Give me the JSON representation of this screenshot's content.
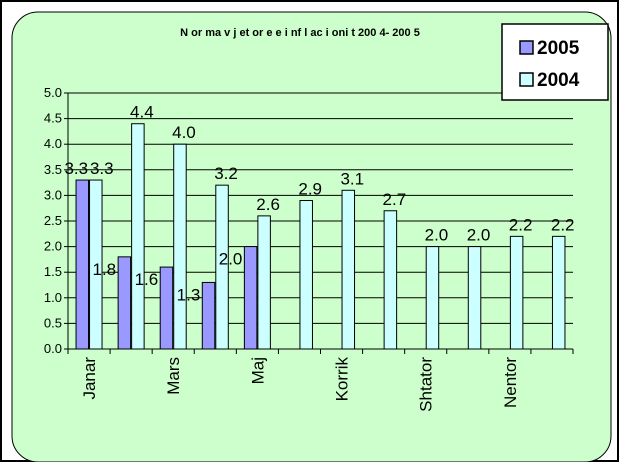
{
  "chart_data": {
    "type": "bar",
    "title": "N or ma v j et or e e i nf l ac i oni t 200 4- 200 5",
    "xlabel": "",
    "ylabel": "",
    "ylim": [
      0,
      5
    ],
    "yticks": [
      "0.0",
      "0.5",
      "1.0",
      "1.5",
      "2.0",
      "2.5",
      "3.0",
      "3.5",
      "4.0",
      "4.5",
      "5.0"
    ],
    "categories": [
      "Janar",
      "",
      "Mars",
      "",
      "Maj",
      "",
      "Korrik",
      "",
      "Shtator",
      "",
      "Nentor",
      ""
    ],
    "series": [
      {
        "name": "2005",
        "color": "#9999ff",
        "values": [
          3.3,
          1.8,
          1.6,
          1.3,
          2.0,
          null,
          null,
          null,
          null,
          null,
          null,
          null
        ],
        "labels": [
          "3.3",
          "1.8",
          "1.6",
          "1.3",
          "2.0"
        ]
      },
      {
        "name": "2004",
        "color": "#ccffff",
        "values": [
          3.3,
          4.4,
          4.0,
          3.2,
          2.6,
          2.9,
          3.1,
          2.7,
          2.0,
          2.0,
          2.2,
          2.2
        ],
        "labels": [
          "3.3",
          "4.4",
          "4.0",
          "3.2",
          "2.6",
          "2.9",
          "3.1",
          "2.7",
          "2.0",
          "2.0",
          "2.2",
          "2.2"
        ]
      }
    ],
    "legend_position": "top-right",
    "grid": true,
    "plot_background": "#ccffcc",
    "frame_background": "#ccffcc"
  }
}
